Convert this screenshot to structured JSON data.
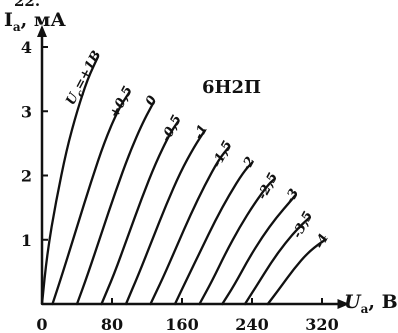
{
  "top_fragment": "22.",
  "chart_data": {
    "type": "line",
    "title": "6Н2П",
    "xlabel": "U",
    "xlabel_sub": "а",
    "xlabel_unit": ", В",
    "ylabel": "I",
    "ylabel_sub": "а",
    "ylabel_unit": ", мА",
    "xlim": [
      0,
      340
    ],
    "ylim": [
      0,
      4
    ],
    "x_ticks": [
      0,
      80,
      160,
      240,
      320
    ],
    "y_ticks": [
      1,
      2,
      3,
      4
    ],
    "grid": false,
    "series": [
      {
        "name": "U",
        "sub": "с",
        "suffix": "=+1В",
        "points": [
          [
            0,
            0.0
          ],
          [
            6,
            0.8
          ],
          [
            16,
            1.6
          ],
          [
            28,
            2.4
          ],
          [
            40,
            3.0
          ],
          [
            52,
            3.5
          ],
          [
            64,
            3.85
          ]
        ]
      },
      {
        "name": "+0,5",
        "points": [
          [
            12,
            0.0
          ],
          [
            24,
            0.5
          ],
          [
            40,
            1.2
          ],
          [
            56,
            1.9
          ],
          [
            72,
            2.55
          ],
          [
            88,
            3.05
          ],
          [
            100,
            3.3
          ]
        ]
      },
      {
        "name": "0",
        "points": [
          [
            40,
            0.0
          ],
          [
            52,
            0.45
          ],
          [
            68,
            1.1
          ],
          [
            84,
            1.75
          ],
          [
            100,
            2.35
          ],
          [
            116,
            2.85
          ],
          [
            128,
            3.15
          ]
        ]
      },
      {
        "name": "-0,5",
        "points": [
          [
            68,
            0.0
          ],
          [
            82,
            0.45
          ],
          [
            98,
            1.05
          ],
          [
            114,
            1.65
          ],
          [
            130,
            2.2
          ],
          [
            146,
            2.65
          ],
          [
            156,
            2.85
          ]
        ]
      },
      {
        "name": "-1",
        "points": [
          [
            96,
            0.0
          ],
          [
            110,
            0.45
          ],
          [
            126,
            1.0
          ],
          [
            142,
            1.55
          ],
          [
            158,
            2.05
          ],
          [
            174,
            2.45
          ],
          [
            186,
            2.7
          ]
        ]
      },
      {
        "name": "-1,5",
        "points": [
          [
            124,
            0.0
          ],
          [
            138,
            0.4
          ],
          [
            154,
            0.9
          ],
          [
            170,
            1.4
          ],
          [
            186,
            1.85
          ],
          [
            202,
            2.25
          ],
          [
            214,
            2.45
          ]
        ]
      },
      {
        "name": "-2",
        "points": [
          [
            152,
            0.0
          ],
          [
            166,
            0.4
          ],
          [
            182,
            0.85
          ],
          [
            198,
            1.3
          ],
          [
            214,
            1.7
          ],
          [
            230,
            2.05
          ],
          [
            240,
            2.2
          ]
        ]
      },
      {
        "name": "-2,5",
        "points": [
          [
            180,
            0.0
          ],
          [
            194,
            0.35
          ],
          [
            210,
            0.8
          ],
          [
            226,
            1.2
          ],
          [
            242,
            1.55
          ],
          [
            258,
            1.85
          ],
          [
            266,
            1.95
          ]
        ]
      },
      {
        "name": "-3",
        "points": [
          [
            206,
            0.0
          ],
          [
            220,
            0.3
          ],
          [
            236,
            0.7
          ],
          [
            252,
            1.05
          ],
          [
            268,
            1.35
          ],
          [
            284,
            1.6
          ],
          [
            290,
            1.7
          ]
        ]
      },
      {
        "name": "-3,5",
        "points": [
          [
            232,
            0.0
          ],
          [
            246,
            0.3
          ],
          [
            262,
            0.65
          ],
          [
            278,
            0.95
          ],
          [
            294,
            1.2
          ],
          [
            306,
            1.35
          ]
        ]
      },
      {
        "name": "-4",
        "points": [
          [
            258,
            0.0
          ],
          [
            272,
            0.25
          ],
          [
            288,
            0.55
          ],
          [
            304,
            0.8
          ],
          [
            318,
            0.95
          ],
          [
            324,
            1.0
          ]
        ]
      }
    ]
  }
}
